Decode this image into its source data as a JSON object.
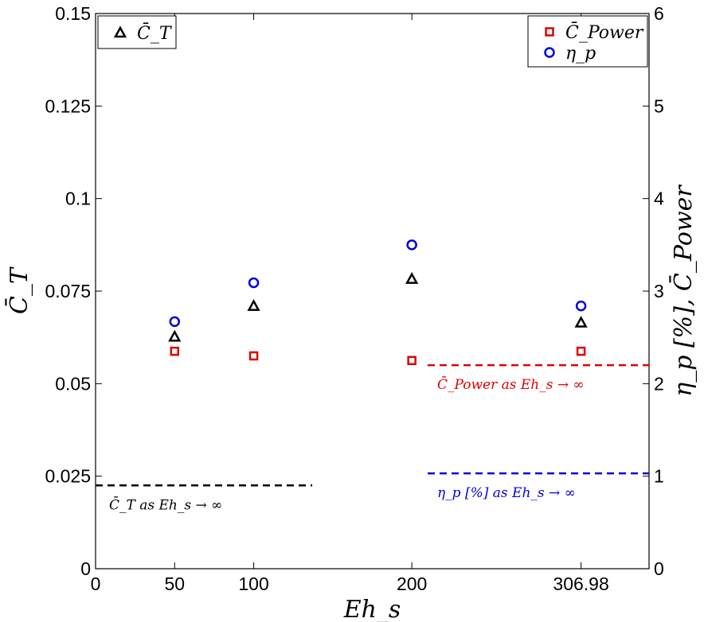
{
  "chart_data": {
    "type": "scatter",
    "xlabel": "Eh_s",
    "ylabel_left": "C̄_T",
    "ylabel_right": "η_p [%],  C̄_Power",
    "xlim": [
      0,
      350
    ],
    "ylim_left": [
      0,
      0.15
    ],
    "ylim_right": [
      0,
      6
    ],
    "x_ticks": [
      {
        "value": 0,
        "label": "0"
      },
      {
        "value": 50,
        "label": "50"
      },
      {
        "value": 100,
        "label": "100"
      },
      {
        "value": 200,
        "label": "200"
      },
      {
        "value": 307,
        "label": "306.98"
      }
    ],
    "y_left_ticks": [
      {
        "value": 0,
        "label": "0"
      },
      {
        "value": 0.025,
        "label": "0.025"
      },
      {
        "value": 0.05,
        "label": "0.05"
      },
      {
        "value": 0.075,
        "label": "0.075"
      },
      {
        "value": 0.1,
        "label": "0.1"
      },
      {
        "value": 0.125,
        "label": "0.125"
      },
      {
        "value": 0.15,
        "label": "0.15"
      }
    ],
    "y_right_ticks": [
      {
        "value": 0,
        "label": "0"
      },
      {
        "value": 1,
        "label": "1"
      },
      {
        "value": 2,
        "label": "2"
      },
      {
        "value": 3,
        "label": "3"
      },
      {
        "value": 4,
        "label": "4"
      },
      {
        "value": 5,
        "label": "5"
      },
      {
        "value": 6,
        "label": "6"
      }
    ],
    "series": [
      {
        "name": "C̄_T",
        "axis": "left",
        "marker": "triangle",
        "color": "#000000",
        "x": [
          50,
          100,
          200,
          307
        ],
        "y": [
          0.0627,
          0.071,
          0.0783,
          0.0665
        ]
      },
      {
        "name": "C̄_Power",
        "axis": "right",
        "marker": "square",
        "color": "#e00000",
        "x": [
          50,
          100,
          200,
          307
        ],
        "y": [
          2.35,
          2.3,
          2.25,
          2.35
        ]
      },
      {
        "name": "η_p",
        "axis": "right",
        "marker": "circle",
        "color": "#0000dd",
        "x": [
          50,
          100,
          200,
          307
        ],
        "y": [
          2.67,
          3.09,
          3.5,
          2.84
        ]
      }
    ],
    "reference_lines": [
      {
        "name": "ct-asymptote",
        "axis": "left",
        "value": 0.0225,
        "x_range": [
          0,
          137
        ],
        "color": "#000000",
        "label": "C̄_T as Eh_s → ∞"
      },
      {
        "name": "power-asymptote",
        "axis": "right",
        "value": 2.2,
        "x_range": [
          210,
          350
        ],
        "color": "#e00000",
        "label": "C̄_Power as Eh_s → ∞"
      },
      {
        "name": "eta-asymptote",
        "axis": "right",
        "value": 1.03,
        "x_range": [
          210,
          350
        ],
        "color": "#0000dd",
        "label": "η_p [%] as Eh_s → ∞"
      }
    ],
    "legend_left": [
      {
        "marker": "triangle",
        "color": "#000000",
        "label": "C̄_T"
      }
    ],
    "legend_right": [
      {
        "marker": "square",
        "color": "#e00000",
        "label": "C̄_Power"
      },
      {
        "marker": "circle",
        "color": "#0000dd",
        "label": "η_p"
      }
    ],
    "grid": false
  }
}
